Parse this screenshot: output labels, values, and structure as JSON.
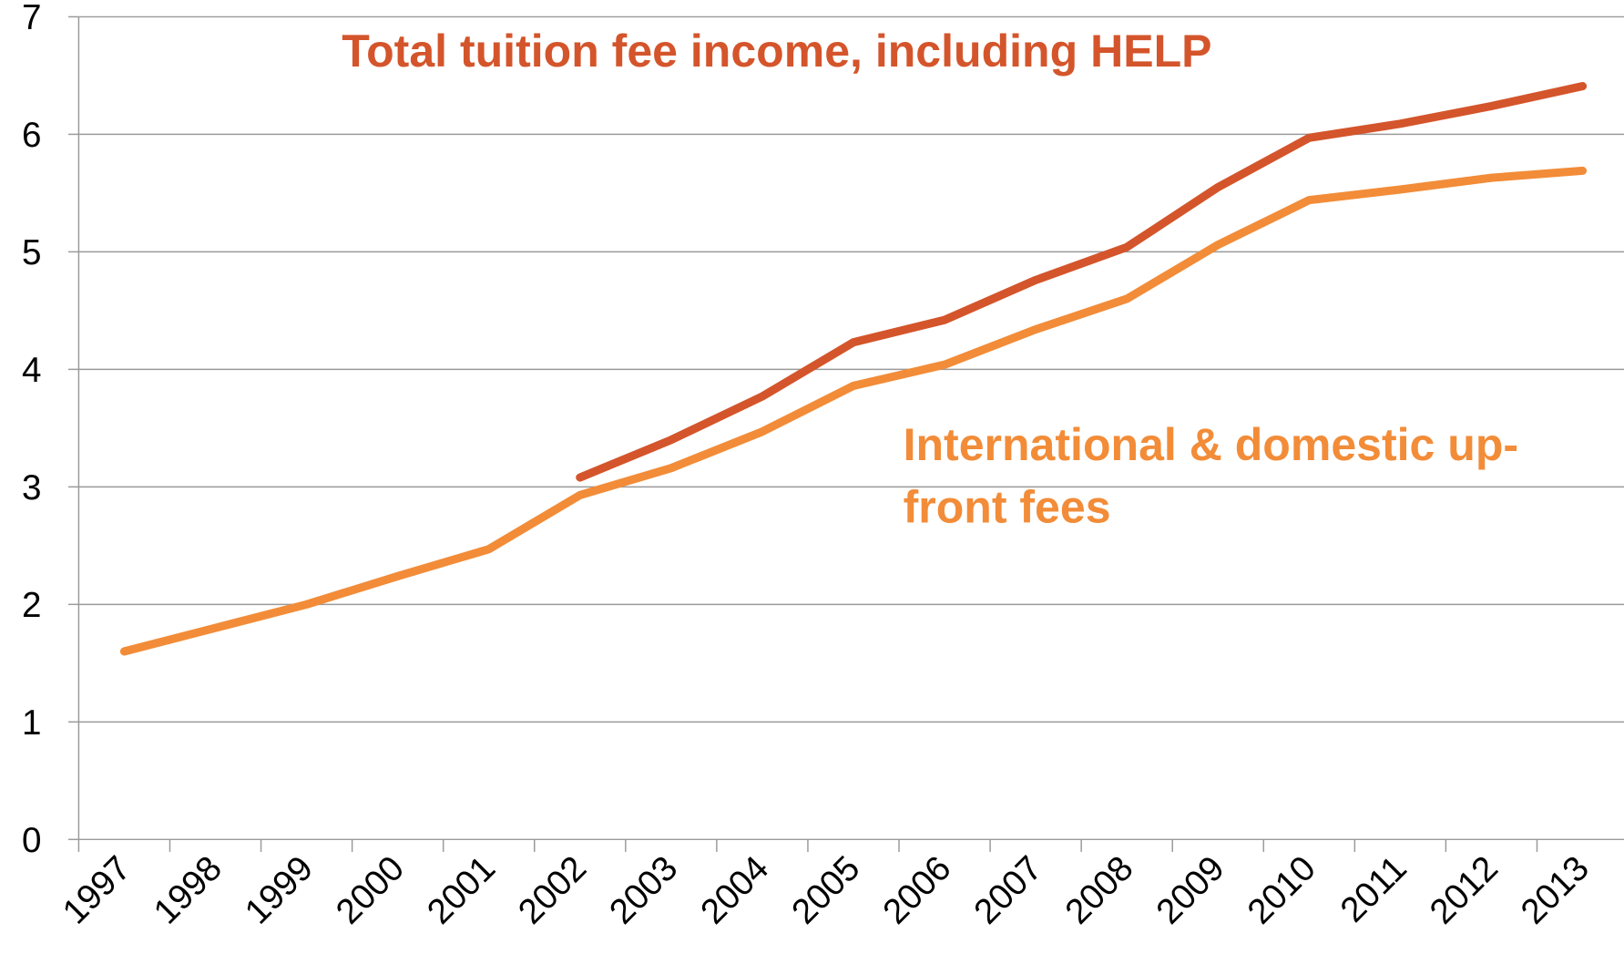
{
  "chart_data": {
    "type": "line",
    "categories": [
      "1997",
      "1998",
      "1999",
      "2000",
      "2001",
      "2002",
      "2003",
      "2004",
      "2005",
      "2006",
      "2007",
      "2008",
      "2009",
      "2010",
      "2011",
      "2012",
      "2013"
    ],
    "series": [
      {
        "name": "Total tuition fee income, including HELP",
        "color": "#d4552b",
        "values": [
          null,
          null,
          null,
          null,
          null,
          3.08,
          3.4,
          3.77,
          4.23,
          4.42,
          4.76,
          5.04,
          5.55,
          5.97,
          6.09,
          6.24,
          6.41
        ]
      },
      {
        "name": "International & domestic up-front fees",
        "color": "#f28c38",
        "values": [
          1.6,
          1.8,
          2.0,
          2.24,
          2.47,
          2.93,
          3.16,
          3.47,
          3.86,
          4.04,
          4.34,
          4.6,
          5.06,
          5.44,
          5.53,
          5.63,
          5.69
        ]
      }
    ],
    "ylim": [
      0,
      7
    ],
    "yticks": [
      0,
      1,
      2,
      3,
      4,
      5,
      6,
      7
    ],
    "grid": true
  }
}
